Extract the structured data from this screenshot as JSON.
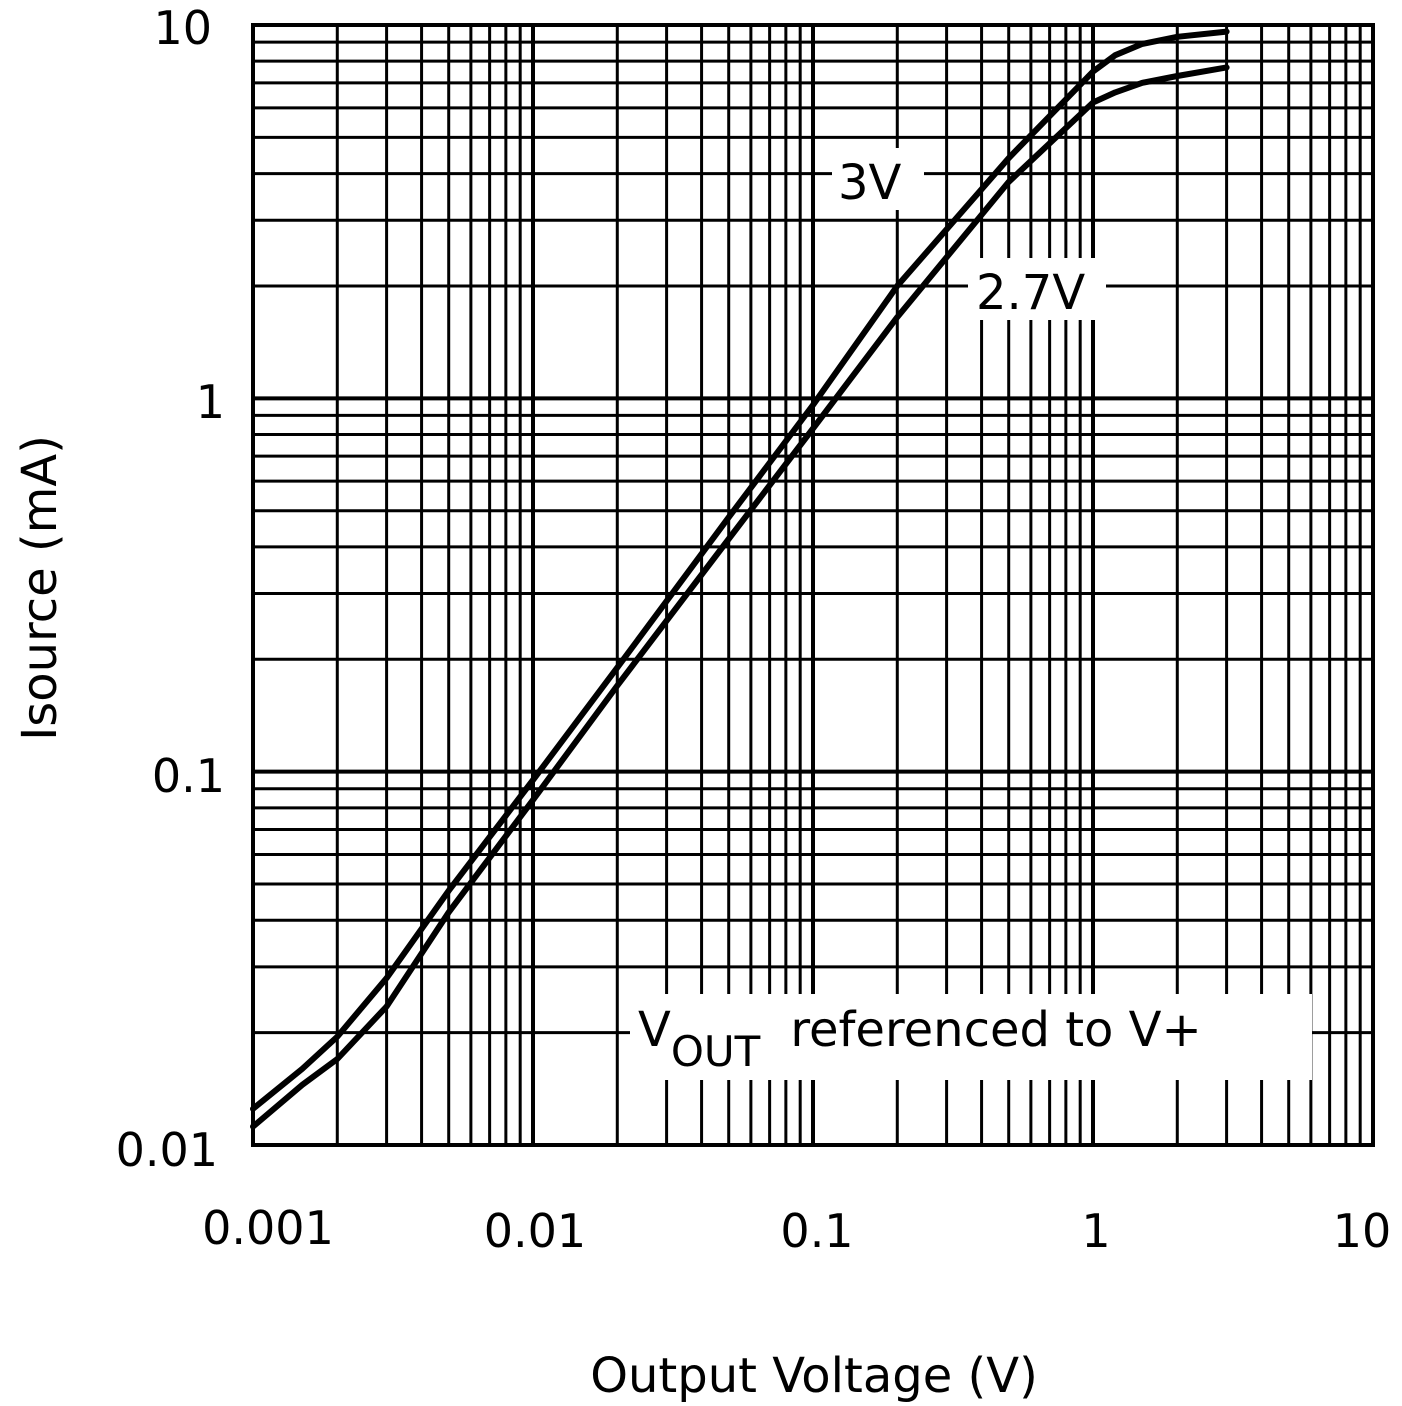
{
  "chart_data": {
    "type": "line",
    "xlabel": "Output Voltage (V)",
    "ylabel": "Isource (mA)",
    "xscale": "log",
    "yscale": "log",
    "xlim": [
      0.001,
      10
    ],
    "ylim": [
      0.01,
      10
    ],
    "grid": true,
    "x_ticks": [
      "0.001",
      "0.01",
      "0.1",
      "1",
      "10"
    ],
    "y_ticks": [
      "0.01",
      "0.1",
      "1",
      "10"
    ],
    "series": [
      {
        "name": "3V",
        "x": [
          0.001,
          0.0015,
          0.002,
          0.003,
          0.005,
          0.01,
          0.02,
          0.05,
          0.1,
          0.2,
          0.5,
          1,
          1.2,
          1.5,
          2,
          3
        ],
        "y": [
          0.0125,
          0.016,
          0.0195,
          0.028,
          0.048,
          0.095,
          0.19,
          0.48,
          0.96,
          2.0,
          4.4,
          7.5,
          8.3,
          8.9,
          9.3,
          9.6
        ]
      },
      {
        "name": "2.7V",
        "x": [
          0.001,
          0.0015,
          0.002,
          0.003,
          0.005,
          0.01,
          0.02,
          0.05,
          0.1,
          0.2,
          0.5,
          1,
          1.2,
          1.5,
          2,
          3
        ],
        "y": [
          0.0112,
          0.0145,
          0.017,
          0.0235,
          0.042,
          0.084,
          0.17,
          0.42,
          0.83,
          1.65,
          3.8,
          6.2,
          6.6,
          7.0,
          7.3,
          7.7
        ]
      }
    ],
    "annotations": {
      "label_3v": "3V",
      "label_27v": "2.7V",
      "vout_main": "V",
      "vout_sub": "OUT",
      "vout_rest": "referenced to V+"
    }
  }
}
